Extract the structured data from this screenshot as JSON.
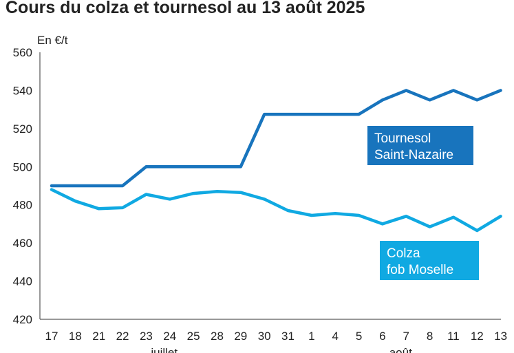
{
  "chart_data": {
    "type": "line",
    "title": "Cours du colza et tournesol au 13 août 2025",
    "ylabel": "En €/t",
    "ylim": [
      420,
      560
    ],
    "yticks": [
      420,
      440,
      460,
      480,
      500,
      520,
      540,
      560
    ],
    "categories": [
      "17",
      "18",
      "21",
      "22",
      "23",
      "24",
      "25",
      "28",
      "29",
      "30",
      "31",
      "1",
      "4",
      "5",
      "6",
      "7",
      "8",
      "11",
      "12",
      "13"
    ],
    "months": [
      {
        "label": "juillet",
        "center_index": 5
      },
      {
        "label": "août",
        "center_index": 15
      }
    ],
    "grid": false,
    "series": [
      {
        "name": [
          "Tournesol",
          "Saint-Nazaire"
        ],
        "color": "#1874bd",
        "values": [
          490,
          490,
          490,
          490,
          500,
          500,
          500,
          500,
          500,
          527.5,
          527.5,
          527.5,
          527.5,
          527.5,
          535,
          540,
          535,
          540,
          535,
          540
        ]
      },
      {
        "name": [
          "Colza",
          "fob Moselle"
        ],
        "color": "#10a9e2",
        "values": [
          488,
          482,
          478,
          478.5,
          485.5,
          483,
          486,
          487,
          486.5,
          483,
          477,
          474.5,
          475.5,
          474.5,
          470,
          474,
          468.5,
          473.5,
          466.5,
          474
        ]
      }
    ]
  }
}
